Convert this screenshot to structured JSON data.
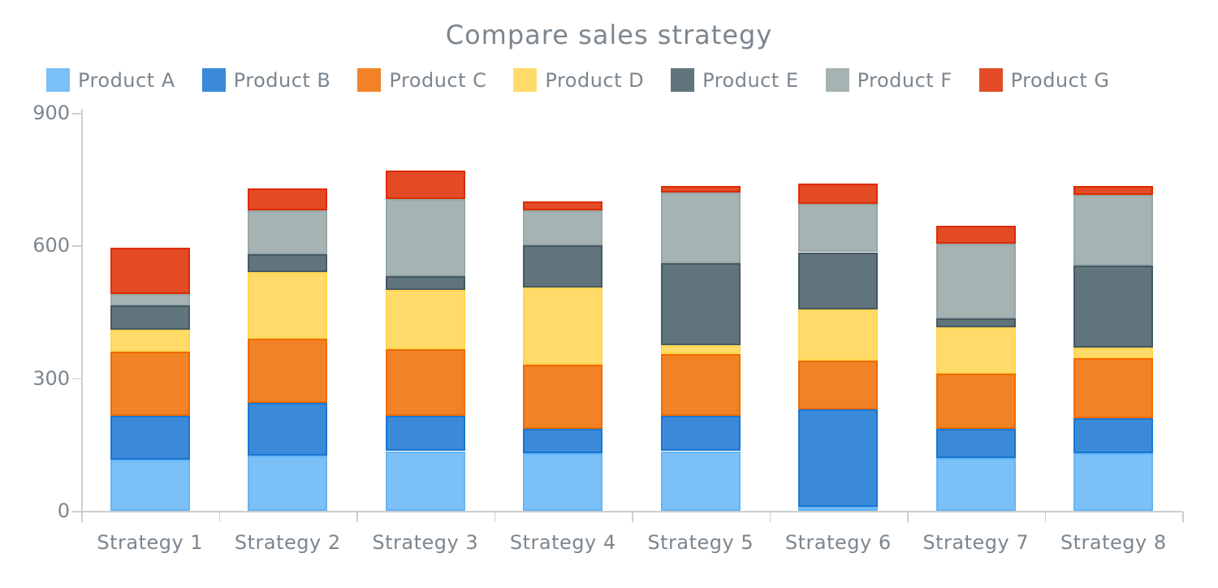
{
  "chart_data": {
    "type": "bar",
    "stacked": true,
    "title": "Compare sales strategy",
    "categories": [
      "Strategy 1",
      "Strategy 2",
      "Strategy 3",
      "Strategy 4",
      "Strategy 5",
      "Strategy 6",
      "Strategy 7",
      "Strategy 8"
    ],
    "series": [
      {
        "name": "Product A",
        "color": "#64b5f6",
        "values": [
          115,
          125,
          135,
          130,
          135,
          10,
          120,
          130
        ]
      },
      {
        "name": "Product B",
        "color": "#1976d2",
        "values": [
          100,
          120,
          80,
          55,
          80,
          220,
          65,
          80
        ]
      },
      {
        "name": "Product C",
        "color": "#ef6c00",
        "values": [
          145,
          145,
          150,
          145,
          140,
          110,
          125,
          135
        ]
      },
      {
        "name": "Product D",
        "color": "#ffd54f",
        "values": [
          50,
          150,
          135,
          175,
          20,
          115,
          105,
          25
        ]
      },
      {
        "name": "Product E",
        "color": "#455a64",
        "values": [
          55,
          40,
          30,
          95,
          185,
          130,
          20,
          185
        ]
      },
      {
        "name": "Product F",
        "color": "#96a6a6",
        "values": [
          25,
          100,
          175,
          80,
          160,
          110,
          170,
          160
        ]
      },
      {
        "name": "Product G",
        "color": "#dd2c00",
        "values": [
          105,
          50,
          65,
          20,
          15,
          45,
          40,
          20
        ]
      }
    ],
    "totals": [
      595,
      730,
      770,
      700,
      735,
      740,
      645,
      735
    ],
    "xlabel": "",
    "ylabel": "",
    "ylim": [
      0,
      900
    ],
    "yticks": [
      "0",
      "300",
      "600",
      "900"
    ],
    "grid": false,
    "legend_position": "top",
    "fill_opacity": 0.85,
    "text_color": "#7c868e",
    "axis_color": "#cecece"
  }
}
